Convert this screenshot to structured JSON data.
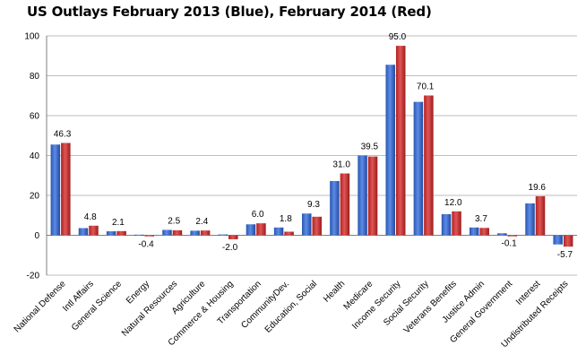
{
  "chart_data": {
    "type": "bar",
    "title": "US Outlays February 2013 (Blue), February 2014 (Red)",
    "xlabel": "",
    "ylabel": "",
    "ylim": [
      -20,
      100
    ],
    "yticks": [
      -20,
      0,
      20,
      40,
      60,
      80,
      100
    ],
    "grid": true,
    "colors": {
      "series_2013": "#3c6fd1",
      "series_2014": "#d03a3a"
    },
    "categories": [
      "National Defense",
      "Intl Affairs",
      "General Science",
      "Energy",
      "Natural Resources",
      "Agriculture",
      "Commerce & Housing",
      "Transportation",
      "CommunityDev.",
      "Education, Social",
      "Health",
      "Medicare",
      "Income Security",
      "Social Security",
      "Veterans Benefits",
      "Justice Admin",
      "General Government",
      "Interest",
      "Undistributed Receipts"
    ],
    "series": [
      {
        "values": [
          45.5,
          3.6,
          2.0,
          0.3,
          2.7,
          2.3,
          0.4,
          5.5,
          3.9,
          10.9,
          27.2,
          40.0,
          85.5,
          66.9,
          10.6,
          3.9,
          1.0,
          16.0,
          -4.6
        ]
      },
      {
        "values": [
          46.3,
          4.8,
          2.1,
          -0.4,
          2.5,
          2.4,
          -2.0,
          6.0,
          1.8,
          9.3,
          31.0,
          39.5,
          95.0,
          70.1,
          12.0,
          3.7,
          -0.1,
          19.6,
          -5.7
        ]
      }
    ],
    "data_labels": [
      "46.3",
      "4.8",
      "2.1",
      "-0.4",
      "2.5",
      "2.4",
      "-2.0",
      "6.0",
      "1.8",
      "9.3",
      "31.0",
      "39.5",
      "95.0",
      "70.1",
      "12.0",
      "3.7",
      "-0.1",
      "19.6",
      "-5.7"
    ]
  }
}
